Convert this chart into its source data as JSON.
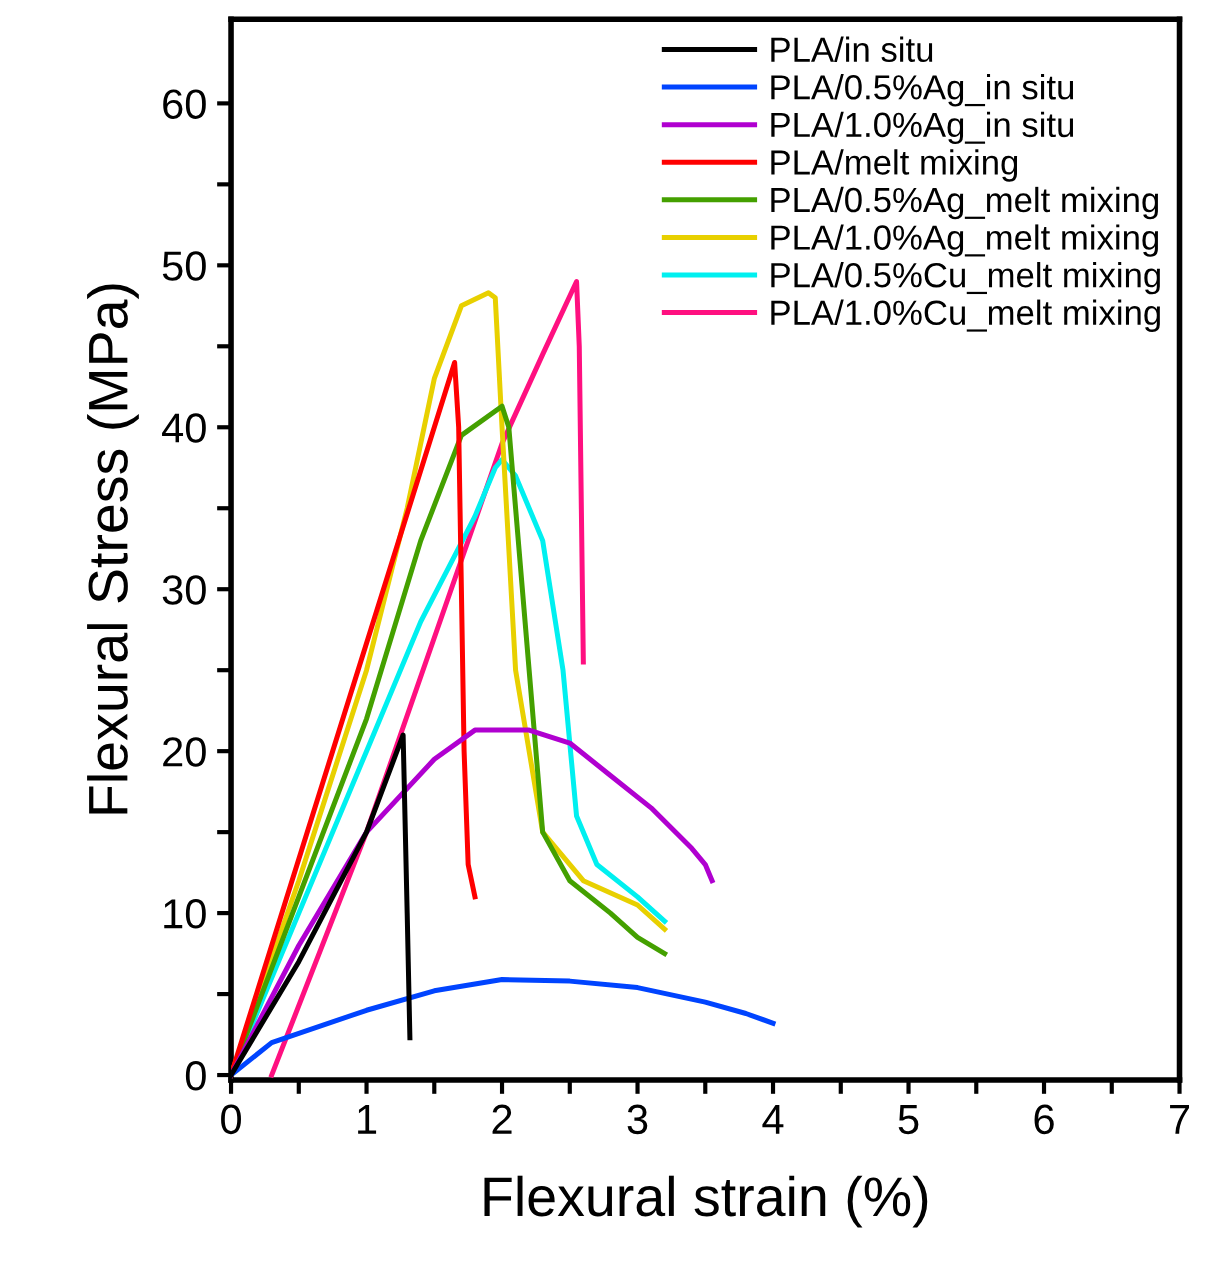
{
  "chart_data": {
    "type": "line",
    "xlabel": "Flexural strain (%)",
    "ylabel": "Flexural Stress (MPa)",
    "xlim": [
      0,
      7
    ],
    "ylim": [
      -0.3,
      65.2
    ],
    "xticks": [
      0,
      {
        "value": 0.5,
        "label": null
      },
      1,
      {
        "value": 1.5,
        "label": null
      },
      2,
      {
        "value": 2.5,
        "label": null
      },
      3,
      {
        "value": 3.5,
        "label": null
      },
      4,
      {
        "value": 4.5,
        "label": null
      },
      5,
      {
        "value": 5.5,
        "label": null
      },
      6,
      {
        "value": 6.5,
        "label": null
      },
      7
    ],
    "yticks": [
      0,
      {
        "value": 5,
        "label": null
      },
      10,
      {
        "value": 15,
        "label": null
      },
      20,
      {
        "value": 25,
        "label": null
      },
      30,
      {
        "value": 35,
        "label": null
      },
      40,
      {
        "value": 45,
        "label": null
      },
      50,
      {
        "value": 55,
        "label": null
      },
      60
    ],
    "grid": false,
    "legend": "top right",
    "marker": "none",
    "line_style": "solid",
    "series": [
      {
        "name": "PLA/in situ",
        "color": "#000000",
        "x": [
          0,
          0.5,
          1.0,
          1.27,
          1.3,
          1.32
        ],
        "values": [
          0,
          7,
          15,
          21,
          10,
          2.3
        ]
      },
      {
        "name": "PLA/0.5%Ag_in situ",
        "color": "#0044ff",
        "x": [
          0,
          0.3,
          1,
          1.5,
          2,
          2.5,
          3,
          3.5,
          3.8,
          4.0
        ],
        "values": [
          0,
          2,
          4,
          5.2,
          5.9,
          5.8,
          5.4,
          4.5,
          3.8,
          3.2
        ]
      },
      {
        "name": "PLA/1.0%Ag_in situ",
        "color": "#b000d0",
        "x": [
          0,
          0.5,
          1,
          1.5,
          1.8,
          2.2,
          2.5,
          2.8,
          3.1,
          3.4,
          3.5,
          3.55
        ],
        "values": [
          0,
          8,
          15,
          19.5,
          21.3,
          21.3,
          20.5,
          18.5,
          16.5,
          14,
          13,
          12
        ]
      },
      {
        "name": "PLA/melt mixing",
        "color": "#ff0000",
        "x": [
          0,
          1.65,
          1.68,
          1.72,
          1.75,
          1.8
        ],
        "values": [
          0,
          44,
          40,
          20,
          13,
          11
        ]
      },
      {
        "name": "PLA/0.5%Ag_melt mixing",
        "color": "#44a000",
        "x": [
          0,
          0.5,
          1,
          1.4,
          1.7,
          2.0,
          2.05,
          2.2,
          2.3,
          2.5,
          2.8,
          3.0,
          3.2
        ],
        "values": [
          0,
          11,
          22,
          33,
          39.5,
          41.3,
          40,
          25,
          15,
          12,
          10,
          8.5,
          7.5
        ]
      },
      {
        "name": "PLA/1.0%Ag_melt mixing",
        "color": "#e8d000",
        "x": [
          0,
          0.5,
          1,
          1.3,
          1.5,
          1.7,
          1.9,
          1.95,
          2.0,
          2.1,
          2.3,
          2.6,
          3.0,
          3.2
        ],
        "values": [
          0,
          12,
          25,
          35,
          43,
          47.5,
          48.3,
          48,
          40,
          25,
          15,
          12,
          10.5,
          9
        ]
      },
      {
        "name": "PLA/0.5%Cu_melt mixing",
        "color": "#00f0f0",
        "x": [
          0,
          0.5,
          1,
          1.4,
          1.8,
          1.95,
          2.0,
          2.1,
          2.3,
          2.45,
          2.55,
          2.7,
          3.0,
          3.2
        ],
        "values": [
          0,
          10,
          20,
          28,
          34.5,
          37.5,
          38,
          37,
          33,
          25,
          16,
          13,
          11,
          9.5
        ]
      },
      {
        "name": "PLA/1.0%Cu_melt mixing",
        "color": "#ff1080",
        "x": [
          0.3,
          1,
          1.5,
          2.0,
          2.3,
          2.55,
          2.57,
          2.6
        ],
        "values": [
          0,
          15,
          27,
          39,
          44.5,
          49,
          45,
          25.5
        ]
      }
    ]
  }
}
